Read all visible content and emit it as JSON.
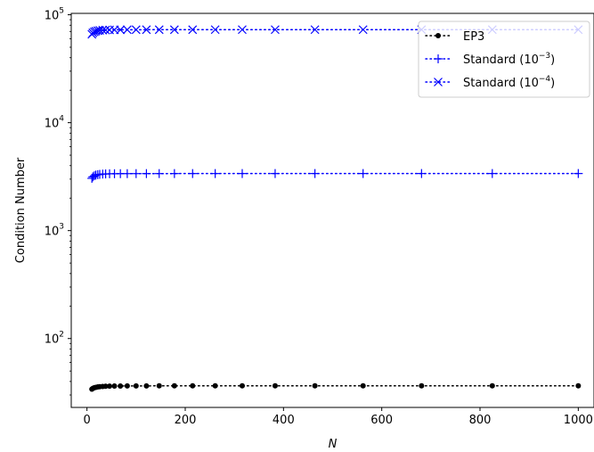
{
  "chart_data": {
    "type": "line",
    "xlabel": "N",
    "ylabel": "Condition Number",
    "xlim": [
      -32,
      1032
    ],
    "ylim": [
      23,
      103000
    ],
    "yscale": "log",
    "grid": false,
    "legend_position": "top-right",
    "x_ticks": [
      0,
      200,
      400,
      600,
      800,
      1000
    ],
    "x_tick_labels": [
      "0",
      "200",
      "400",
      "600",
      "800",
      "1000"
    ],
    "y_ticks": [
      100,
      1000,
      10000,
      100000
    ],
    "y_tick_labels": [
      {
        "base": "10",
        "exp": "2"
      },
      {
        "base": "10",
        "exp": "3"
      },
      {
        "base": "10",
        "exp": "4"
      },
      {
        "base": "10",
        "exp": "5"
      }
    ],
    "x": [
      10,
      12,
      15,
      18,
      22,
      26,
      32,
      38,
      46,
      56,
      68,
      82,
      100,
      121,
      147,
      178,
      215,
      261,
      316,
      383,
      464,
      562,
      681,
      825,
      1000
    ],
    "series": [
      {
        "name": "EP3",
        "marker": "dot",
        "color": "#000000",
        "values": [
          34,
          34.5,
          35,
          35.3,
          35.6,
          35.8,
          36,
          36.1,
          36.2,
          36.3,
          36.3,
          36.4,
          36.4,
          36.4,
          36.5,
          36.5,
          36.5,
          36.5,
          36.5,
          36.5,
          36.5,
          36.5,
          36.5,
          36.5,
          36.5
        ]
      },
      {
        "name_prefix": "Standard (10",
        "name_exp": "−3",
        "name_suffix": ")",
        "marker": "plus",
        "color": "#0000ff",
        "values": [
          3050,
          3150,
          3220,
          3270,
          3300,
          3320,
          3340,
          3350,
          3360,
          3365,
          3370,
          3372,
          3374,
          3375,
          3376,
          3377,
          3378,
          3378,
          3379,
          3379,
          3380,
          3380,
          3380,
          3380,
          3380
        ]
      },
      {
        "name_prefix": "Standard (10",
        "name_exp": "−4",
        "name_suffix": ")",
        "marker": "x",
        "color": "#0000ff",
        "values": [
          66000,
          68000,
          69500,
          70500,
          71200,
          71700,
          72000,
          72200,
          72400,
          72500,
          72600,
          72650,
          72700,
          72700,
          72750,
          72750,
          72750,
          72800,
          72800,
          72800,
          72800,
          72800,
          72800,
          72800,
          72800
        ]
      }
    ]
  }
}
